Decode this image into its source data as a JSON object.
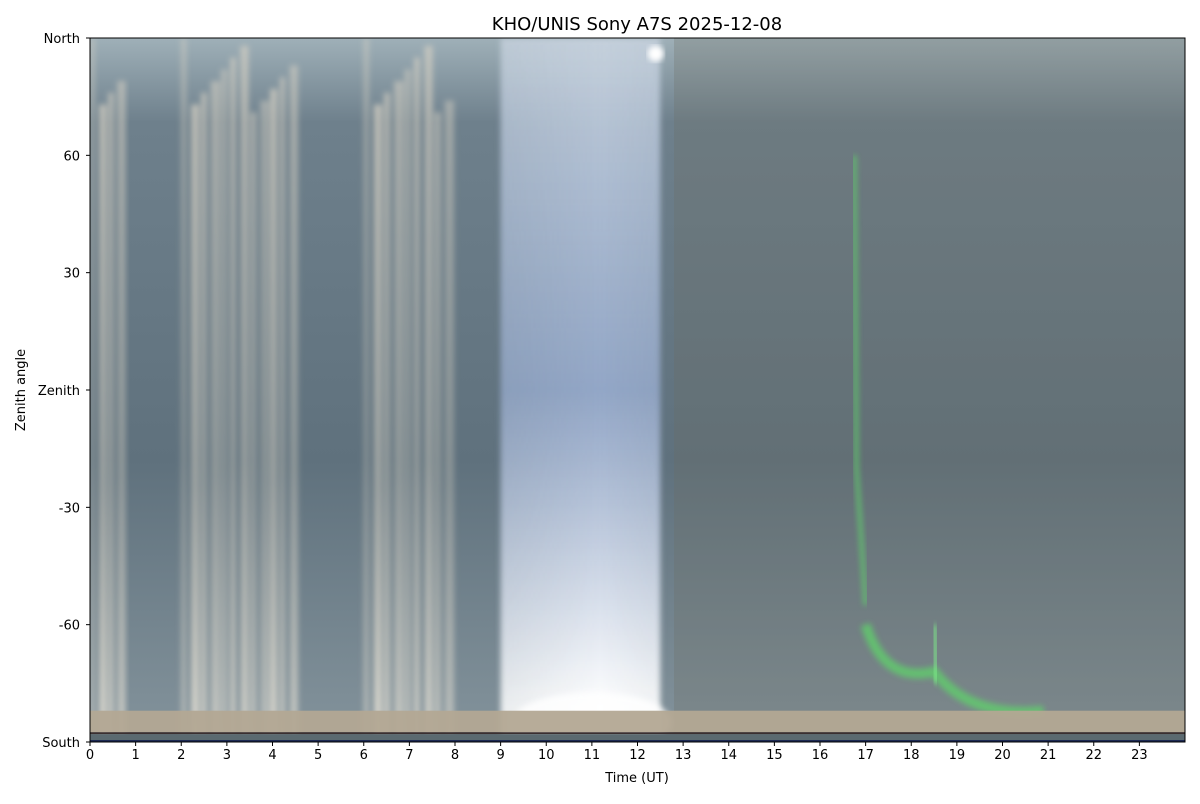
{
  "chart_data": {
    "type": "heatmap",
    "title": "KHO/UNIS Sony A7S 2025-12-08",
    "xlabel": "Time (UT)",
    "ylabel": "Zenith angle",
    "xlim": [
      0,
      24
    ],
    "ylim": [
      -90,
      90
    ],
    "x_ticks": [
      0,
      1,
      2,
      3,
      4,
      5,
      6,
      7,
      8,
      9,
      10,
      11,
      12,
      13,
      14,
      15,
      16,
      17,
      18,
      19,
      20,
      21,
      22,
      23
    ],
    "x_tick_labels": [
      "0",
      "1",
      "2",
      "3",
      "4",
      "5",
      "6",
      "7",
      "8",
      "9",
      "10",
      "11",
      "12",
      "13",
      "14",
      "15",
      "16",
      "17",
      "18",
      "19",
      "20",
      "21",
      "22",
      "23"
    ],
    "y_ticks": [
      90,
      60,
      30,
      0,
      -30,
      -60,
      -90
    ],
    "y_tick_labels": [
      "North",
      "60",
      "30",
      "Zenith",
      "-30",
      "-60",
      "South"
    ],
    "grid": false,
    "colors": {
      "sky_background": "#5f717d",
      "cloud_streaks": "#d9d3c5",
      "twilight_glow": "#a9bbdc",
      "aurora_green": "#5fd36a",
      "horizon_band": "#b3a893"
    },
    "features": [
      {
        "label": "cloud",
        "x_range": [
          0,
          0.8
        ]
      },
      {
        "label": "cloud",
        "x_range": [
          2,
          4.6
        ]
      },
      {
        "label": "cloud",
        "x_range": [
          6,
          8
        ]
      },
      {
        "label": "twilight",
        "x_range": [
          9,
          12.5
        ]
      },
      {
        "label": "aurora",
        "x_range": [
          16.6,
          21
        ]
      }
    ]
  }
}
